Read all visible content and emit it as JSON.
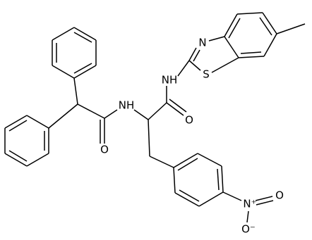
{
  "atoms": [
    {
      "label": "N"
    },
    {
      "label": "S"
    },
    {
      "label": "NH"
    },
    {
      "label": "O"
    },
    {
      "label": "NH"
    },
    {
      "label": "O"
    },
    {
      "label": "N⁺"
    },
    {
      "label": "O⁻"
    },
    {
      "label": "O"
    }
  ]
}
